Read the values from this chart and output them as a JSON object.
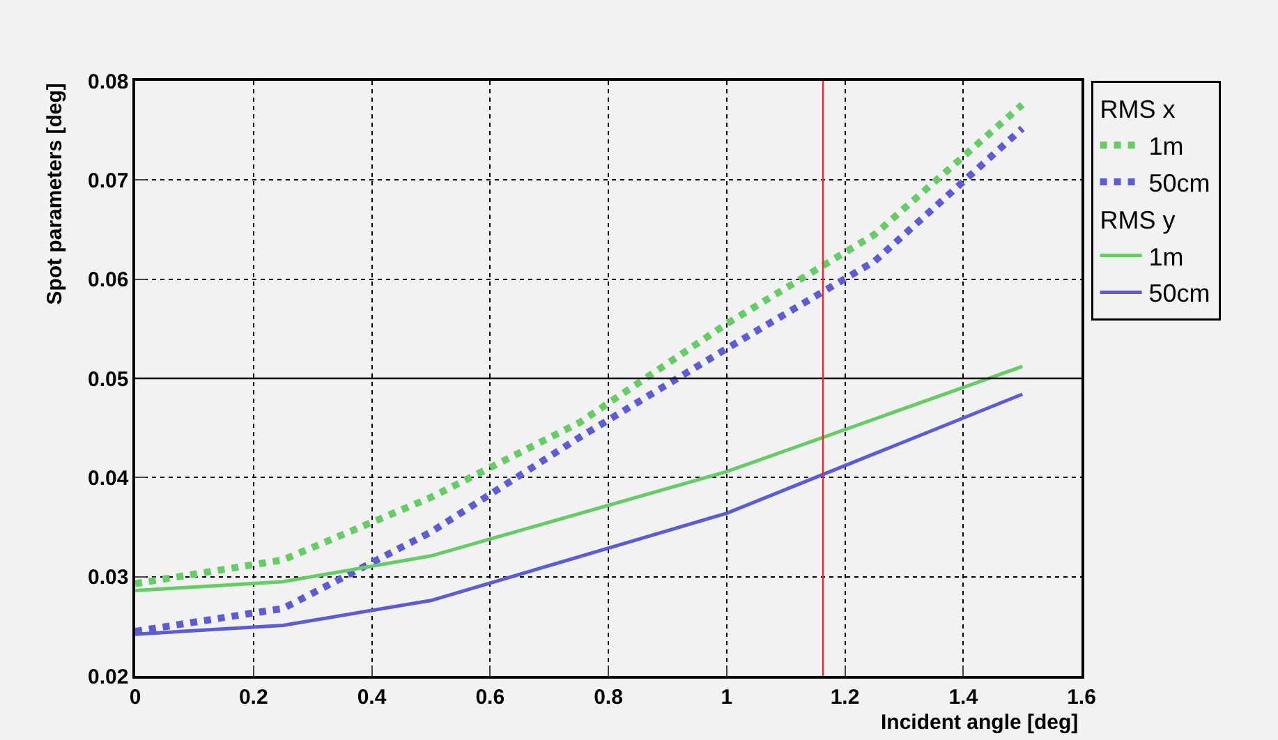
{
  "chart_data": {
    "type": "line",
    "xlabel": "Incident angle [deg]",
    "ylabel": "Spot parameters [deg]",
    "xlim": [
      0,
      1.6
    ],
    "xticks": [
      0,
      0.2,
      0.4,
      0.6,
      0.8,
      1,
      1.2,
      1.4,
      1.6
    ],
    "ylim": [
      0.02,
      0.08
    ],
    "yticks": [
      0.02,
      0.03,
      0.04,
      0.05,
      0.06,
      0.07,
      0.08
    ],
    "grid": true,
    "legend": "top right",
    "annotations": [
      "RMS x",
      "RMS y"
    ],
    "series": [
      {
        "name": "1m",
        "color": "#66cc66",
        "line_style": "dotted",
        "x": [
          0,
          0.25,
          0.5,
          0.75,
          1,
          1.25,
          1.5
        ],
        "values": [
          0.0293,
          0.0317,
          0.038,
          0.0455,
          0.0555,
          0.0645,
          0.0776
        ]
      },
      {
        "name": "50cm",
        "color": "#5c5cd6",
        "line_style": "dotted",
        "x": [
          0,
          0.25,
          0.5,
          0.75,
          1,
          1.25,
          1.5
        ],
        "values": [
          0.0245,
          0.0268,
          0.0345,
          0.044,
          0.053,
          0.0618,
          0.0752
        ]
      },
      {
        "name": "1m",
        "color": "#66cc66",
        "line_style": "solid",
        "x": [
          0,
          0.25,
          0.5,
          1,
          1.5
        ],
        "values": [
          0.0286,
          0.0295,
          0.0321,
          0.0406,
          0.0512
        ]
      },
      {
        "name": "50cm",
        "color": "#5c5cd6",
        "line_style": "solid",
        "x": [
          0,
          0.25,
          0.5,
          1,
          1.5
        ],
        "values": [
          0.0242,
          0.0251,
          0.0276,
          0.0364,
          0.0484
        ]
      }
    ],
    "ref_lines": [
      {
        "axis": "y",
        "value": 0.05,
        "color": "#000000",
        "line_style": "solid"
      },
      {
        "axis": "x",
        "value": 1.163,
        "color": "#e03030",
        "line_style": "solid"
      }
    ]
  }
}
